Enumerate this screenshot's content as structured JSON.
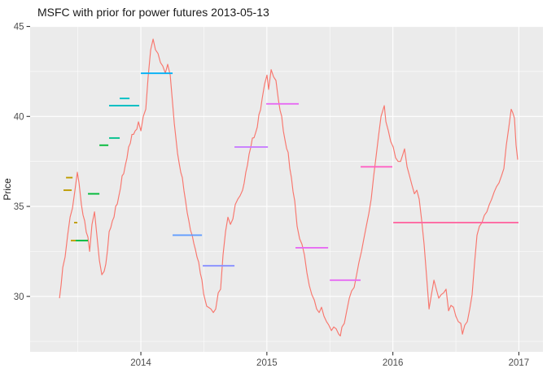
{
  "chart_data": {
    "type": "line",
    "title": "MSFC with prior for power futures 2013-05-13",
    "ylabel": "Price",
    "xlabel": "",
    "xlim": [
      2013.121,
      2017.191
    ],
    "ylim": [
      26.92,
      44.98
    ],
    "x_ticks": {
      "values": [
        2014,
        2015,
        2016,
        2017
      ],
      "labels": [
        "2014",
        "2015",
        "2016",
        "2017"
      ]
    },
    "y_ticks": {
      "values": [
        30,
        35,
        40,
        45
      ],
      "labels": [
        "30",
        "35",
        "40",
        "45"
      ]
    },
    "x_minor": [
      2013.5,
      2014.5,
      2015.5,
      2016.5
    ],
    "y_minor": [
      27.5,
      32.5,
      37.5,
      42.5
    ],
    "grid": "on",
    "panel_bg": "#EBEBEB",
    "grid_color": "#FFFFFF",
    "axis_text_color": "#4D4D4D",
    "tick_mark_color": "#333333",
    "series": [
      {
        "name": "price-line",
        "color": "#F8766D",
        "x": [
          2013.354,
          2013.38,
          2013.399,
          2013.419,
          2013.438,
          2013.457,
          2013.477,
          2013.496,
          2013.509,
          2013.528,
          2013.554,
          2013.58,
          2013.593,
          2013.612,
          2013.632,
          2013.651,
          2013.671,
          2013.69,
          2013.709,
          2013.722,
          2013.748,
          2013.774,
          2013.8,
          2013.826,
          2013.851,
          2013.877,
          2013.903,
          2013.929,
          2013.955,
          2013.981,
          2014.0,
          2014.019,
          2014.039,
          2014.058,
          2014.078,
          2014.097,
          2014.116,
          2014.136,
          2014.155,
          2014.174,
          2014.194,
          2014.213,
          2014.233,
          2014.252,
          2014.278,
          2014.304,
          2014.329,
          2014.355,
          2014.381,
          2014.407,
          2014.433,
          2014.459,
          2014.485,
          2014.51,
          2014.536,
          2014.556,
          2014.575,
          2014.594,
          2014.614,
          2014.633,
          2014.652,
          2014.672,
          2014.691,
          2014.711,
          2014.73,
          2014.749,
          2014.769,
          2014.788,
          2014.807,
          2014.833,
          2014.859,
          2014.885,
          2014.911,
          2014.937,
          2014.963,
          2014.982,
          2015.001,
          2015.014,
          2015.034,
          2015.053,
          2015.072,
          2015.092,
          2015.118,
          2015.144,
          2015.169,
          2015.195,
          2015.221,
          2015.24,
          2015.26,
          2015.279,
          2015.298,
          2015.318,
          2015.337,
          2015.357,
          2015.376,
          2015.395,
          2015.415,
          2015.434,
          2015.453,
          2015.473,
          2015.492,
          2015.512,
          2015.531,
          2015.55,
          2015.57,
          2015.583,
          2015.596,
          2015.615,
          2015.634,
          2015.654,
          2015.673,
          2015.693,
          2015.712,
          2015.731,
          2015.751,
          2015.77,
          2015.789,
          2015.809,
          2015.828,
          2015.848,
          2015.867,
          2015.886,
          2015.906,
          2015.919,
          2015.932,
          2015.945,
          2015.964,
          2015.983,
          2016.003,
          2016.022,
          2016.042,
          2016.061,
          2016.08,
          2016.093,
          2016.113,
          2016.132,
          2016.151,
          2016.171,
          2016.19,
          2016.209,
          2016.229,
          2016.248,
          2016.268,
          2016.287,
          2016.306,
          2016.326,
          2016.345,
          2016.364,
          2016.384,
          2016.403,
          2016.422,
          2016.442,
          2016.461,
          2016.481,
          2016.5,
          2016.519,
          2016.539,
          2016.552,
          2016.571,
          2016.591,
          2016.61,
          2016.629,
          2016.649,
          2016.668,
          2016.687,
          2016.707,
          2016.726,
          2016.746,
          2016.765,
          2016.784,
          2016.804,
          2016.823,
          2016.842,
          2016.862,
          2016.881,
          2016.9,
          2016.92,
          2016.939,
          2016.952,
          2016.965,
          2016.978,
          2016.991
        ],
        "y": [
          29.9,
          31.6,
          32.2,
          33.4,
          34.4,
          34.9,
          35.9,
          36.9,
          36.3,
          35.1,
          34.2,
          33.3,
          32.5,
          34.0,
          34.7,
          33.4,
          32.0,
          31.2,
          31.4,
          31.8,
          33.6,
          34.2,
          35.0,
          35.6,
          36.7,
          37.3,
          38.3,
          39.0,
          39.2,
          39.7,
          39.2,
          40.0,
          40.4,
          42.2,
          43.7,
          44.3,
          43.7,
          43.5,
          43.0,
          42.8,
          42.4,
          42.9,
          42.3,
          40.7,
          38.8,
          37.4,
          36.6,
          35.3,
          34.2,
          33.4,
          32.6,
          31.9,
          30.9,
          29.8,
          29.4,
          29.3,
          29.1,
          29.3,
          30.2,
          30.4,
          32.3,
          33.6,
          34.4,
          34.0,
          34.3,
          35.1,
          35.4,
          35.6,
          35.9,
          36.9,
          37.9,
          38.8,
          39.1,
          40.1,
          41.0,
          41.8,
          42.3,
          41.5,
          42.6,
          42.2,
          42.0,
          40.9,
          40.0,
          38.7,
          38.0,
          36.6,
          35.3,
          33.9,
          33.2,
          32.9,
          32.3,
          31.3,
          30.6,
          30.1,
          29.8,
          29.3,
          29.1,
          29.4,
          28.9,
          28.6,
          28.4,
          28.1,
          28.3,
          28.2,
          27.9,
          27.8,
          28.3,
          28.5,
          29.2,
          29.9,
          30.3,
          30.5,
          31.2,
          31.9,
          32.5,
          33.2,
          33.9,
          34.6,
          35.4,
          36.7,
          37.8,
          38.9,
          40.0,
          40.3,
          40.6,
          39.7,
          39.2,
          38.6,
          38.3,
          37.7,
          37.5,
          37.5,
          37.9,
          38.2,
          37.2,
          36.7,
          36.2,
          35.7,
          35.9,
          35.4,
          34.2,
          32.9,
          31.1,
          29.3,
          30.1,
          30.9,
          30.4,
          29.9,
          30.1,
          30.2,
          30.4,
          29.2,
          29.5,
          29.4,
          28.9,
          28.6,
          28.5,
          27.9,
          28.4,
          28.6,
          29.3,
          30.1,
          31.9,
          33.4,
          33.9,
          34.1,
          34.5,
          34.7,
          35.1,
          35.4,
          35.8,
          36.1,
          36.3,
          36.7,
          37.1,
          38.4,
          39.4,
          40.4,
          40.2,
          39.9,
          38.4,
          37.6
        ]
      }
    ],
    "prior_segments": [
      {
        "x1": 2013.406,
        "x2": 2013.458,
        "price": 36.6,
        "color": "#BE9C00"
      },
      {
        "x1": 2013.386,
        "x2": 2013.451,
        "price": 35.9,
        "color": "#BE9C00"
      },
      {
        "x1": 2013.47,
        "x2": 2013.496,
        "price": 34.1,
        "color": "#BE9C00"
      },
      {
        "x1": 2013.444,
        "x2": 2013.483,
        "price": 33.1,
        "color": "#BE9C00"
      },
      {
        "x1": 2013.483,
        "x2": 2013.58,
        "price": 33.1,
        "color": "#00BA38"
      },
      {
        "x1": 2013.58,
        "x2": 2013.671,
        "price": 35.7,
        "color": "#00BA38"
      },
      {
        "x1": 2013.671,
        "x2": 2013.742,
        "price": 38.4,
        "color": "#00BA38"
      },
      {
        "x1": 2013.748,
        "x2": 2013.832,
        "price": 38.8,
        "color": "#00C08B"
      },
      {
        "x1": 2013.748,
        "x2": 2013.987,
        "price": 40.6,
        "color": "#00BFC4"
      },
      {
        "x1": 2013.832,
        "x2": 2013.91,
        "price": 41.0,
        "color": "#00BFC4"
      },
      {
        "x1": 2014.0,
        "x2": 2014.252,
        "price": 42.4,
        "color": "#00B0F6"
      },
      {
        "x1": 2014.252,
        "x2": 2014.485,
        "price": 33.4,
        "color": "#619CFF"
      },
      {
        "x1": 2014.491,
        "x2": 2014.743,
        "price": 31.7,
        "color": "#8B93FF"
      },
      {
        "x1": 2014.743,
        "x2": 2015.008,
        "price": 38.3,
        "color": "#C77CFF"
      },
      {
        "x1": 2014.995,
        "x2": 2015.253,
        "price": 40.7,
        "color": "#E76BF3"
      },
      {
        "x1": 2015.227,
        "x2": 2015.486,
        "price": 32.7,
        "color": "#E76BF3"
      },
      {
        "x1": 2015.499,
        "x2": 2015.744,
        "price": 30.9,
        "color": "#E76BF3"
      },
      {
        "x1": 2015.744,
        "x2": 2015.996,
        "price": 37.2,
        "color": "#FF61C3"
      },
      {
        "x1": 2016.003,
        "x2": 2016.997,
        "price": 34.1,
        "color": "#FF68A1"
      }
    ]
  }
}
